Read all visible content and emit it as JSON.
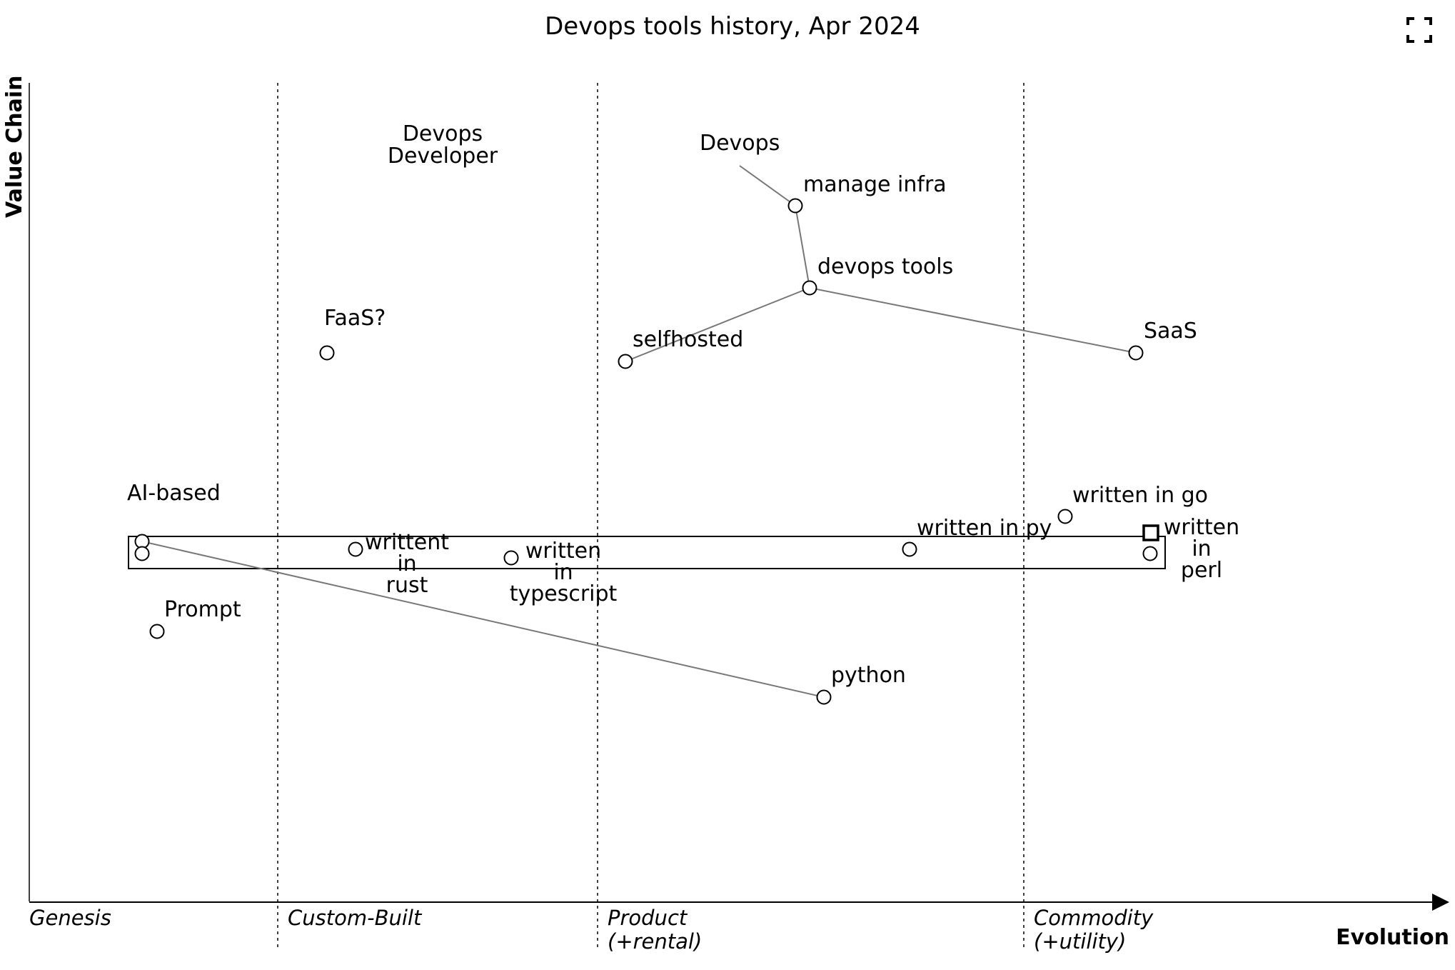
{
  "title": "Devops tools history, Apr 2024",
  "axes": {
    "y_label": "Value Chain",
    "x_label": "Evolution"
  },
  "stages": [
    "Genesis",
    "Custom-Built",
    "Product\n(+rental)",
    "Commodity\n(+utility)"
  ],
  "fullscreen_icon": "fullscreen-icon",
  "anchors": [
    {
      "id": "devops",
      "label": "Devops"
    },
    {
      "id": "devops_developer",
      "label": "Devops\nDeveloper"
    }
  ],
  "components": [
    {
      "id": "manage_infra",
      "label": "manage infra"
    },
    {
      "id": "devops_tools",
      "label": "devops tools"
    },
    {
      "id": "selfhosted",
      "label": "selfhosted"
    },
    {
      "id": "saas",
      "label": "SaaS"
    },
    {
      "id": "faas",
      "label": "FaaS?"
    },
    {
      "id": "ai_based",
      "label": "AI-based"
    },
    {
      "id": "prompt",
      "label": "Prompt"
    },
    {
      "id": "rust",
      "label": "writtent\nin\nrust"
    },
    {
      "id": "typescript",
      "label": "written\nin\ntypescript"
    },
    {
      "id": "py",
      "label": "written in py"
    },
    {
      "id": "go",
      "label": "written in go"
    },
    {
      "id": "perl",
      "label": "written\nin\nperl"
    },
    {
      "id": "python",
      "label": "python"
    }
  ],
  "links": [
    [
      "devops",
      "manage_infra"
    ],
    [
      "manage_infra",
      "devops_tools"
    ],
    [
      "devops_tools",
      "selfhosted"
    ],
    [
      "devops_tools",
      "saas"
    ],
    [
      "ai_based",
      "python"
    ]
  ]
}
